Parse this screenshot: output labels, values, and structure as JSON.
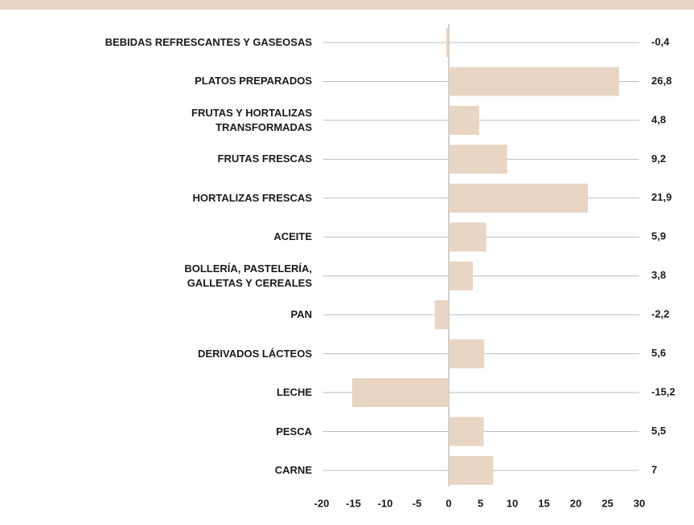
{
  "chart_data": {
    "type": "barh",
    "categories": [
      "BEBIDAS REFRESCANTES Y GASEOSAS",
      "PLATOS PREPARADOS",
      "FRUTAS Y HORTALIZAS\nTRANSFORMADAS",
      "FRUTAS FRESCAS",
      "HORTALIZAS FRESCAS",
      "ACEITE",
      "BOLLERÍA, PASTELERÍA,\nGALLETAS Y CEREALES",
      "PAN",
      "DERIVADOS LÁCTEOS",
      "LECHE",
      "PESCA",
      "CARNE"
    ],
    "values": [
      -0.4,
      26.8,
      4.8,
      9.2,
      21.9,
      5.9,
      3.8,
      -2.2,
      5.6,
      -15.2,
      5.5,
      7
    ],
    "value_labels": [
      "-0,4",
      "26,8",
      "4,8",
      "9,2",
      "21,9",
      "5,9",
      "3,8",
      "-2,2",
      "5,6",
      "-15,2",
      "5,5",
      "7"
    ],
    "color": "#e8d5c4",
    "xlim": [
      -20,
      30
    ],
    "xticks": [
      -20,
      -15,
      -10,
      -5,
      0,
      5,
      10,
      15,
      20,
      25,
      30
    ],
    "grid": false
  }
}
